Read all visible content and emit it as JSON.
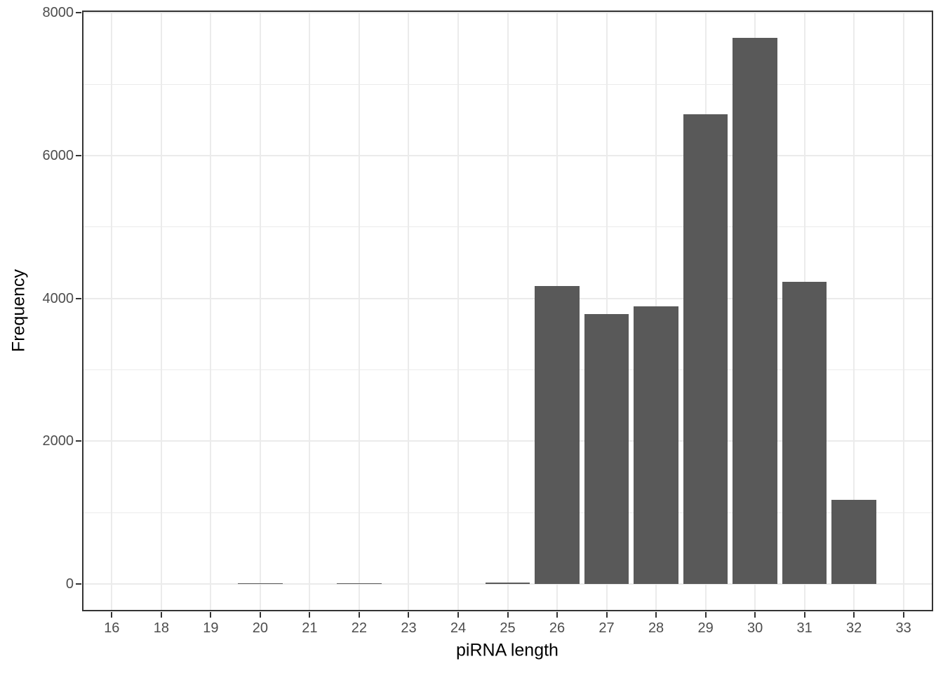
{
  "chart_data": {
    "type": "bar",
    "title": "",
    "xlabel": "piRNA length",
    "ylabel": "Frequency",
    "categories": [
      "16",
      "18",
      "19",
      "20",
      "21",
      "22",
      "23",
      "24",
      "25",
      "26",
      "27",
      "28",
      "29",
      "30",
      "31",
      "32",
      "33"
    ],
    "values": [
      0,
      0,
      0,
      15,
      0,
      15,
      0,
      0,
      20,
      4170,
      3780,
      3890,
      6580,
      7650,
      4230,
      1180,
      0
    ],
    "y_ticks": [
      0,
      2000,
      4000,
      6000,
      8000
    ],
    "y_tick_labels": [
      "0",
      "2000",
      "4000",
      "6000",
      "8000"
    ],
    "y_minor_ticks": [
      1000,
      3000,
      5000,
      7000
    ],
    "ylim": [
      0,
      8000
    ],
    "grid": "on",
    "legend": "none",
    "colors": {
      "bar_fill": "#595959",
      "grid": "#EBEBEB",
      "panel_border": "#333333",
      "tick_mark": "#333333",
      "axis_text": "#4D4D4D",
      "axis_title": "#000000",
      "background": "#FFFFFF"
    }
  }
}
